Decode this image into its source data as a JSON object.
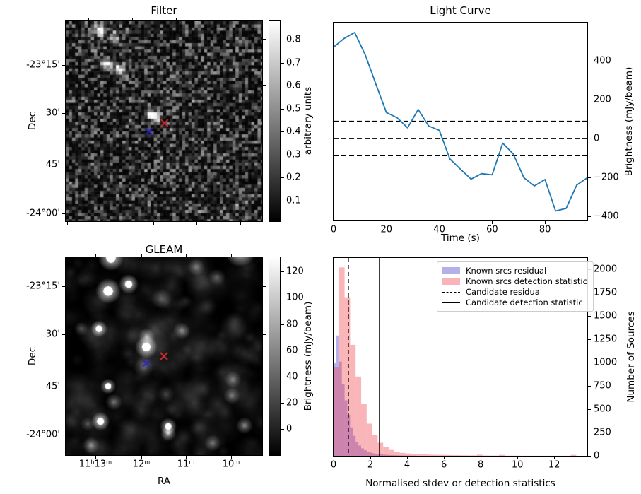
{
  "chart_data": [
    {
      "type": "heatmap",
      "title": "Filter",
      "xlabel": "",
      "ylabel": "Dec",
      "yticks": [
        {
          "label": "-23°15'",
          "pos": 0.219
        },
        {
          "label": "30'",
          "pos": 0.459
        },
        {
          "label": "45'",
          "pos": 0.717
        },
        {
          "label": "-24°00'",
          "pos": 0.961
        }
      ],
      "xticks_bottom": [
        0.007,
        0.223,
        0.446,
        0.665,
        0.888
      ],
      "xticks_top": [
        0.115,
        0.338,
        0.561,
        0.784
      ],
      "yticks_right": [
        0.088,
        0.318,
        0.548,
        0.777
      ],
      "colorbar": {
        "label": "arbitrary units",
        "vmin": 0.01,
        "vmax": 0.88,
        "ticks": [
          0.1,
          0.2,
          0.3,
          0.4,
          0.5,
          0.6,
          0.7,
          0.8
        ]
      },
      "bright_sources": [
        [
          0.176,
          0.045,
          0.95,
          3.2
        ],
        [
          0.245,
          0.085,
          0.5,
          2.8
        ],
        [
          0.205,
          0.215,
          0.85,
          2.8
        ],
        [
          0.275,
          0.245,
          0.8,
          3.2
        ],
        [
          0.43,
          0.465,
          0.95,
          2.6
        ],
        [
          0.462,
          0.478,
          0.8,
          2.6
        ]
      ],
      "markers": [
        {
          "fx": 0.424,
          "fy": 0.551,
          "color": "#2525cf"
        },
        {
          "fx": 0.503,
          "fy": 0.509,
          "color": "#e03030"
        }
      ]
    },
    {
      "type": "line",
      "title": "Light Curve",
      "xlabel": "Time (s)",
      "ylabel": "Brightness (mJy/beam)",
      "line_color": "#1f77b4",
      "x": [
        0,
        4,
        8,
        12,
        16,
        20,
        24,
        28,
        32,
        36,
        40,
        44,
        48,
        52,
        56,
        60,
        64,
        68,
        72,
        76,
        80,
        84,
        88,
        92,
        96
      ],
      "y": [
        470,
        515,
        545,
        430,
        280,
        133,
        107,
        55,
        149,
        64,
        42,
        -105,
        -158,
        -209,
        -181,
        -187,
        -24,
        -80,
        -202,
        -244,
        -211,
        -373,
        -360,
        -240,
        -202
      ],
      "hlines": [
        88,
        0,
        -88
      ],
      "xlim": [
        0,
        96
      ],
      "ylim": [
        -422,
        596
      ],
      "xticks": [
        0,
        20,
        40,
        60,
        80
      ],
      "yticks": [
        -400,
        -200,
        0,
        200,
        400
      ]
    },
    {
      "type": "heatmap",
      "title": "GLEAM",
      "xlabel": "RA",
      "ylabel": "Dec",
      "xticks": [
        {
          "label": "11ʰ13ᵐ",
          "pos": 0.151
        },
        {
          "label": "12ᵐ",
          "pos": 0.385
        },
        {
          "label": "11ᵐ",
          "pos": 0.612
        },
        {
          "label": "10ᵐ",
          "pos": 0.842
        }
      ],
      "yticks": [
        {
          "label": "-23°15'",
          "pos": 0.146
        },
        {
          "label": "30'",
          "pos": 0.389
        },
        {
          "label": "45'",
          "pos": 0.654
        },
        {
          "label": "-24°00'",
          "pos": 0.896
        }
      ],
      "colorbar": {
        "label": "Brightness (mJy/beam)",
        "vmin": -20,
        "vmax": 131,
        "ticks": [
          0,
          20,
          40,
          60,
          80,
          100,
          120
        ]
      },
      "sources": [
        [
          0.23,
          0.004,
          1.0,
          9
        ],
        [
          0.32,
          0.136,
          0.95,
          7
        ],
        [
          0.216,
          0.171,
          1.0,
          9
        ],
        [
          0.888,
          -0.03,
          1.0,
          11
        ],
        [
          0.169,
          0.361,
          0.9,
          6
        ],
        [
          0.413,
          0.4,
          0.55,
          6
        ],
        [
          0.41,
          0.454,
          1.0,
          8
        ],
        [
          0.59,
          0.371,
          0.45,
          6
        ],
        [
          0.665,
          0.05,
          0.35,
          6
        ],
        [
          0.77,
          0.1,
          0.3,
          6
        ],
        [
          0.486,
          0.21,
          0.25,
          7
        ],
        [
          0.216,
          0.652,
          0.85,
          5.5
        ],
        [
          0.245,
          0.732,
          0.45,
          6
        ],
        [
          0.177,
          0.829,
          0.95,
          6.5
        ],
        [
          0.522,
          0.854,
          0.85,
          6
        ],
        [
          0.522,
          0.889,
          0.75,
          5.5
        ],
        [
          0.852,
          0.618,
          0.4,
          6
        ],
        [
          0.845,
          0.7,
          0.4,
          6
        ],
        [
          0.91,
          0.85,
          0.55,
          6
        ],
        [
          0.748,
          0.939,
          0.4,
          6
        ],
        [
          0.13,
          0.95,
          0.45,
          6
        ],
        [
          0.396,
          0.557,
          0.3,
          7
        ],
        [
          0.511,
          0.693,
          0.25,
          6
        ],
        [
          0.112,
          0.843,
          0.3,
          5
        ],
        [
          0.079,
          0.361,
          0.3,
          5
        ]
      ],
      "markers": [
        {
          "fx": 0.41,
          "fy": 0.536,
          "color": "#2525cf"
        },
        {
          "fx": 0.5,
          "fy": 0.5,
          "color": "#e03030"
        }
      ]
    },
    {
      "type": "bar",
      "title": "",
      "xlabel": "Normalised stdev or detection statistics",
      "ylabel": "Number of Sources",
      "xlim": [
        0,
        13.8
      ],
      "ylim": [
        0,
        2121
      ],
      "xticks": [
        0,
        2,
        4,
        6,
        8,
        10,
        12
      ],
      "yticks": [
        0,
        250,
        500,
        750,
        1000,
        1250,
        1500,
        1750,
        2000
      ],
      "series": [
        {
          "name": "Known srcs residual",
          "fill": "rgba(70,60,210,0.40)",
          "bin_start": 0,
          "bin_width": 0.15,
          "values": [
            1000,
            1290,
            1010,
            770,
            595,
            440,
            305,
            215,
            150,
            110,
            80,
            60,
            45,
            35,
            28,
            22,
            18,
            15,
            12,
            10,
            8,
            7,
            6,
            5,
            4,
            4,
            3,
            3,
            2,
            2
          ]
        },
        {
          "name": "Known srcs detection statistic",
          "fill": "rgba(242,60,70,0.38)",
          "bin_start": 0,
          "bin_width": 0.3,
          "values": [
            950,
            2020,
            1700,
            1190,
            850,
            555,
            345,
            225,
            140,
            95,
            63,
            45,
            32,
            26,
            22,
            18,
            15,
            13,
            11,
            10,
            9,
            8,
            7,
            6,
            5,
            5,
            12,
            4,
            3,
            3,
            10,
            2,
            2,
            2,
            1,
            1,
            1,
            1,
            1,
            1,
            1,
            1,
            1,
            10
          ]
        }
      ],
      "vlines": [
        {
          "label": "Candidate residual",
          "x": 0.8,
          "style": "dashed"
        },
        {
          "label": "Candidate detection statistic",
          "x": 2.5,
          "style": "solid"
        }
      ],
      "legend": [
        {
          "label": "Known srcs residual",
          "swatch": "#b3b0ea",
          "type": "patch"
        },
        {
          "label": "Known srcs detection statistic",
          "swatch": "#f9b3b9",
          "type": "patch"
        },
        {
          "label": "Candidate residual",
          "type": "dashed"
        },
        {
          "label": "Candidate detection statistic",
          "type": "solid"
        }
      ]
    }
  ]
}
